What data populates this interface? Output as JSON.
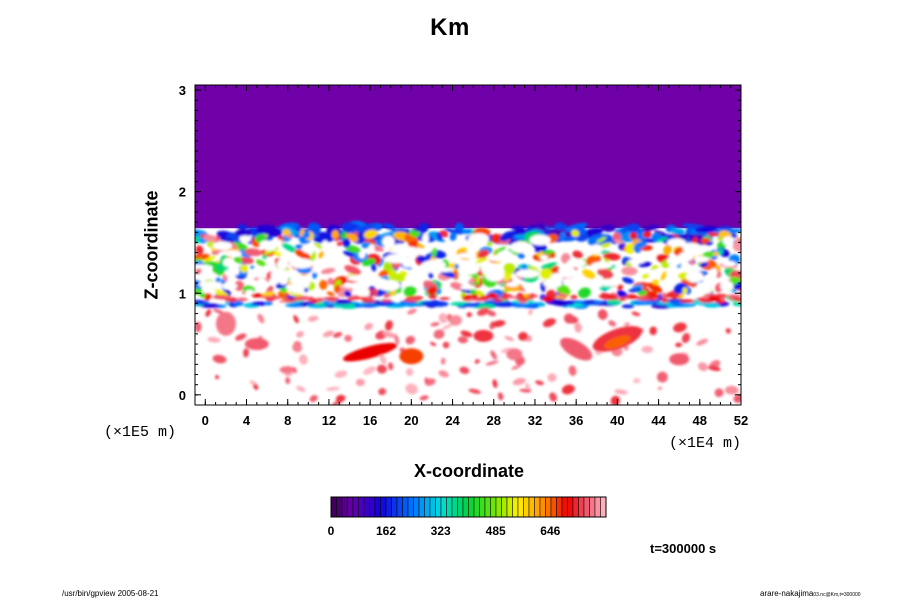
{
  "chart_data": {
    "type": "heatmap",
    "title": "Km",
    "xlabel": "X-coordinate",
    "ylabel": "Z-coordinate",
    "x_scale_note": "(×1E4 m)",
    "y_scale_note": "(×1E5 m)",
    "xlim": [
      -1,
      52
    ],
    "ylim": [
      -0.1,
      3.05
    ],
    "x_ticks": [
      0,
      4,
      8,
      12,
      16,
      20,
      24,
      28,
      32,
      36,
      40,
      44,
      48,
      52
    ],
    "y_ticks": [
      0,
      1,
      2,
      3
    ],
    "colorbar": {
      "min": 0,
      "max": 810,
      "tick_values": [
        0,
        162,
        323,
        485,
        646
      ],
      "tick_labels": [
        "0",
        "162",
        "323",
        "485",
        "646"
      ]
    },
    "field_description": {
      "upper_uniform_value": 0,
      "upper_region_z_range": [
        1.65,
        3.05
      ],
      "turbulent_layer_z_range": [
        0.85,
        1.65
      ],
      "lower_region_z_range": [
        -0.1,
        0.85
      ]
    },
    "annotation": "t=300000 s"
  },
  "footer": {
    "left": "/usr/bin/gpview 2005-08-21",
    "right": "arare-nakajima",
    "right_small": "03.nc@Km,t=300000"
  },
  "colors": {
    "background": "#ffffff",
    "upper_region": "#7000a8",
    "axis": "#000000"
  }
}
